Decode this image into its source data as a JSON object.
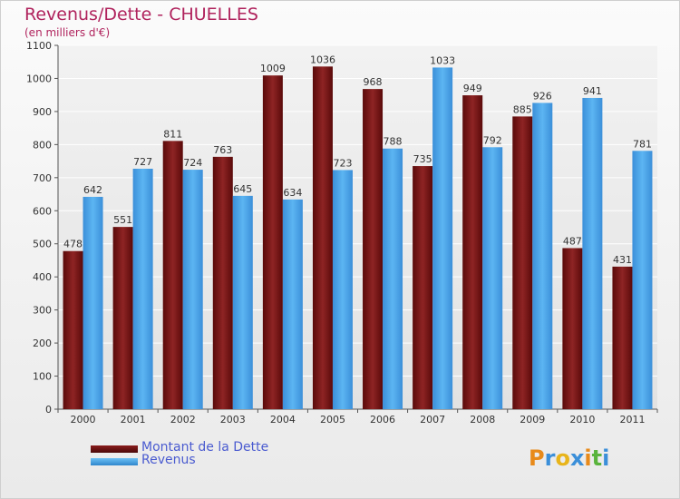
{
  "header": {
    "title": "Revenus/Dette - CHUELLES",
    "subtitle": "(en milliers d'€)"
  },
  "chart_data": {
    "type": "bar",
    "title": "Revenus/Dette - CHUELLES",
    "ylabel": "(en milliers d'€)",
    "xlabel": "",
    "ylim": [
      0,
      1100
    ],
    "ytick_step": 100,
    "grid": true,
    "legend_position": "bottom-left",
    "categories": [
      "2000",
      "2001",
      "2002",
      "2003",
      "2004",
      "2005",
      "2006",
      "2007",
      "2008",
      "2009",
      "2010",
      "2011"
    ],
    "series": [
      {
        "name": "Montant de la Dette",
        "color": "#7a1a1a",
        "values": [
          478,
          551,
          811,
          763,
          1009,
          1036,
          968,
          735,
          949,
          885,
          487,
          431
        ]
      },
      {
        "name": "Revenus",
        "color": "#4aa3e8",
        "values": [
          642,
          727,
          724,
          645,
          634,
          723,
          788,
          1033,
          792,
          926,
          941,
          781
        ]
      }
    ]
  },
  "legend": {
    "items": [
      {
        "label": "Montant de la Dette",
        "color": "#6b0f0f"
      },
      {
        "label": "Revenus",
        "color": "#4aa3e8"
      }
    ]
  },
  "brand": {
    "logo_text": "Proxiti",
    "logo_colors": [
      "#e88a1a",
      "#3b8fd9",
      "#e8b41a",
      "#3b8fd9",
      "#e88a1a",
      "#5ab43c",
      "#3b8fd9"
    ]
  }
}
